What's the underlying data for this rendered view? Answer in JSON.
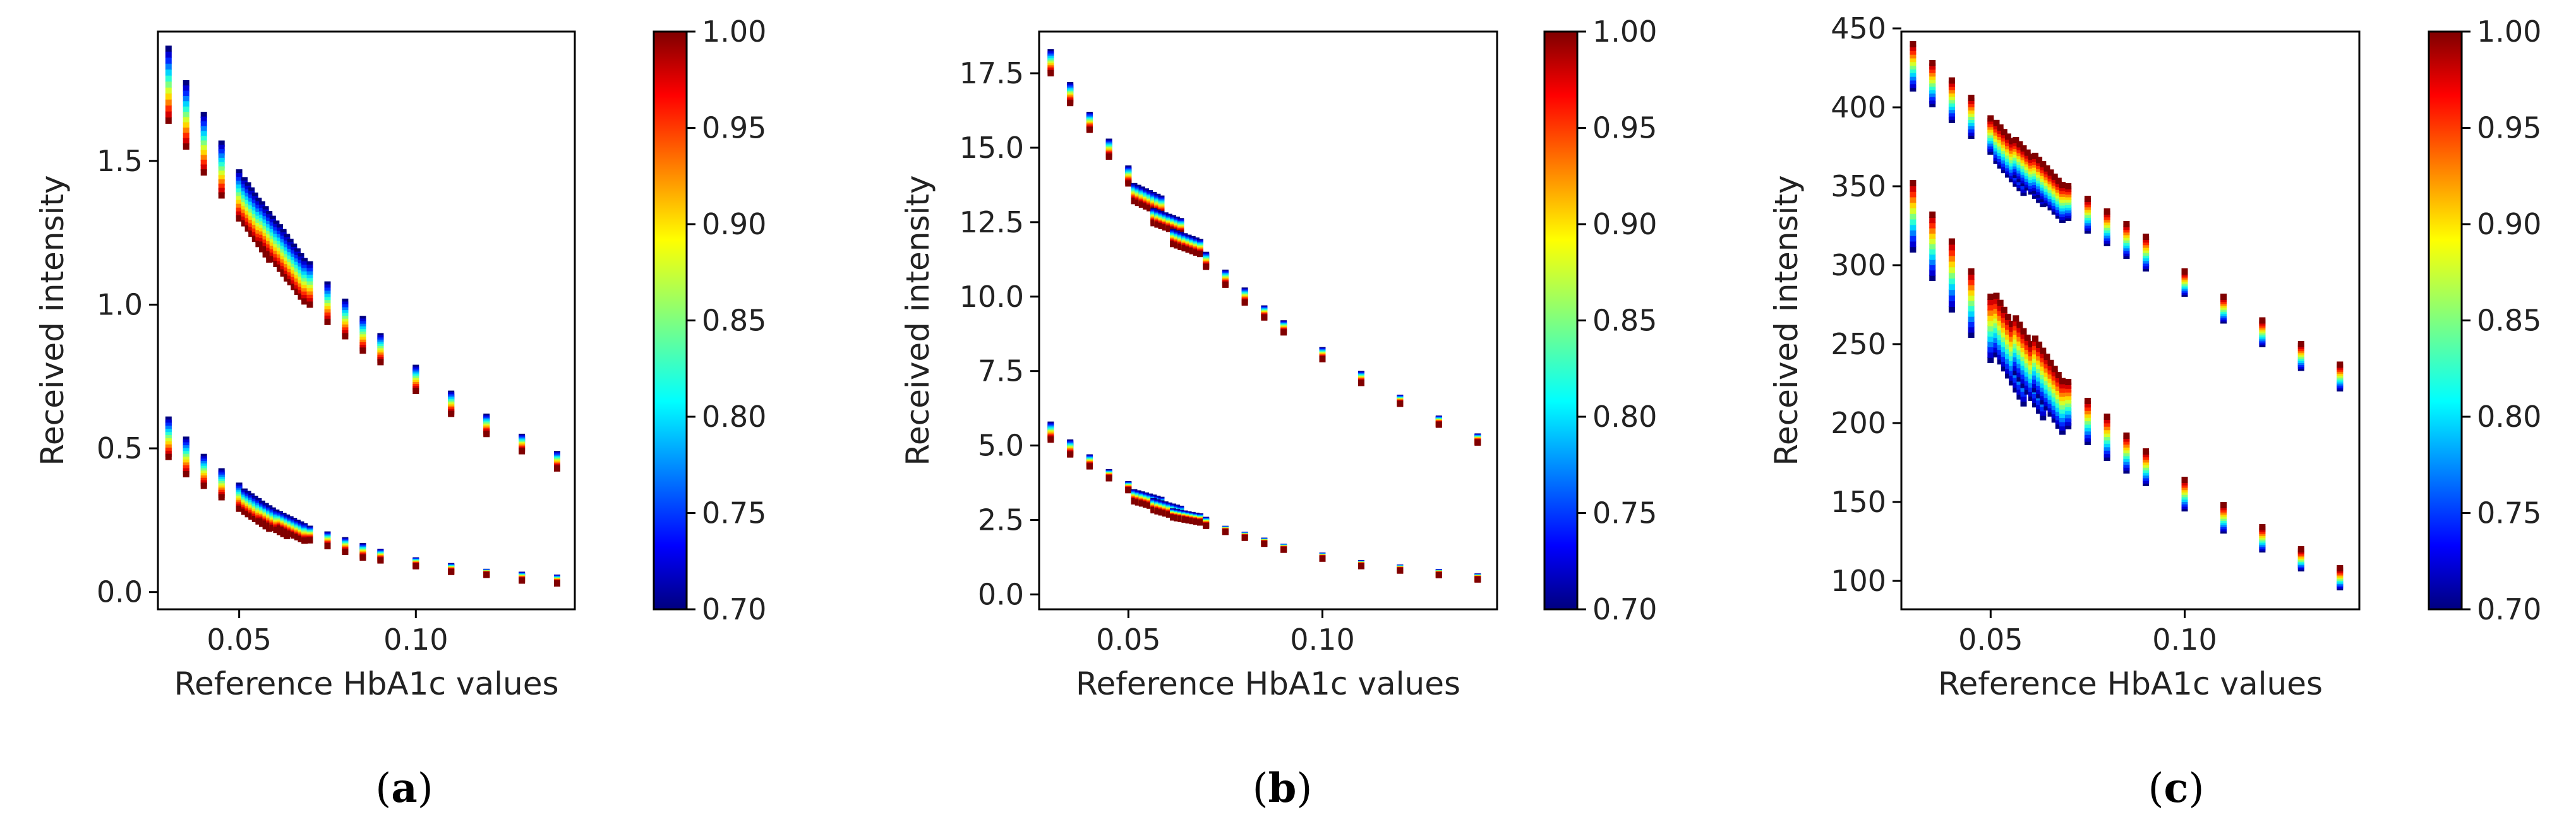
{
  "chart_data": [
    {
      "type": "scatter",
      "panel_label": "a",
      "xlabel": "Reference HbA1c values",
      "ylabel": "Received intensity",
      "xlim": [
        0.027,
        0.145
      ],
      "ylim": [
        -0.06,
        1.95
      ],
      "xticks": [
        0.05,
        0.1
      ],
      "xtick_labels": [
        "0.05",
        "0.10"
      ],
      "yticks": [
        0.0,
        0.5,
        1.0,
        1.5
      ],
      "ytick_labels": [
        "0.0",
        "0.5",
        "1.0",
        "1.5"
      ],
      "colorbar": {
        "range": [
          0.7,
          1.0
        ],
        "ticks": [
          "1.00",
          "0.95",
          "0.90",
          "0.85",
          "0.80",
          "0.75",
          "0.70"
        ],
        "colormap": "jet"
      },
      "series": [
        {
          "name": "upper",
          "x": [
            0.03,
            0.035,
            0.04,
            0.045,
            0.05,
            0.055,
            0.06,
            0.065,
            0.07,
            0.075,
            0.08,
            0.085,
            0.09,
            0.1,
            0.11,
            0.12,
            0.13,
            0.14
          ],
          "ymin": [
            1.64,
            1.55,
            1.46,
            1.38,
            1.3,
            1.22,
            1.15,
            1.07,
            1.0,
            0.94,
            0.89,
            0.84,
            0.8,
            0.7,
            0.62,
            0.55,
            0.49,
            0.43
          ],
          "ymax": [
            1.89,
            1.77,
            1.66,
            1.56,
            1.46,
            1.37,
            1.29,
            1.21,
            1.14,
            1.07,
            1.01,
            0.95,
            0.89,
            0.78,
            0.69,
            0.61,
            0.54,
            0.48
          ]
        },
        {
          "name": "lower",
          "x": [
            0.03,
            0.035,
            0.04,
            0.045,
            0.05,
            0.055,
            0.06,
            0.065,
            0.07,
            0.075,
            0.08,
            0.085,
            0.09,
            0.1,
            0.11,
            0.12,
            0.13,
            0.14
          ],
          "ymin": [
            0.47,
            0.41,
            0.37,
            0.33,
            0.29,
            0.25,
            0.22,
            0.2,
            0.18,
            0.16,
            0.14,
            0.12,
            0.11,
            0.09,
            0.07,
            0.06,
            0.04,
            0.03
          ],
          "ymax": [
            0.6,
            0.53,
            0.47,
            0.42,
            0.37,
            0.32,
            0.28,
            0.25,
            0.22,
            0.2,
            0.18,
            0.16,
            0.14,
            0.11,
            0.09,
            0.07,
            0.06,
            0.05
          ]
        }
      ]
    },
    {
      "type": "scatter",
      "panel_label": "b",
      "xlabel": "Reference HbA1c values",
      "ylabel": "Received intensity",
      "xlim": [
        0.027,
        0.145
      ],
      "ylim": [
        -0.5,
        18.9
      ],
      "xticks": [
        0.05,
        0.1
      ],
      "xtick_labels": [
        "0.05",
        "0.10"
      ],
      "yticks": [
        0.0,
        2.5,
        5.0,
        7.5,
        10.0,
        12.5,
        15.0,
        17.5
      ],
      "ytick_labels": [
        "0.0",
        "2.5",
        "5.0",
        "7.5",
        "10.0",
        "12.5",
        "15.0",
        "17.5"
      ],
      "colorbar": {
        "range": [
          0.7,
          1.0
        ],
        "ticks": [
          "1.00",
          "0.95",
          "0.90",
          "0.85",
          "0.80",
          "0.75",
          "0.70"
        ],
        "colormap": "jet"
      },
      "series": [
        {
          "name": "upper",
          "x": [
            0.03,
            0.035,
            0.04,
            0.045,
            0.05,
            0.055,
            0.06,
            0.065,
            0.07,
            0.075,
            0.08,
            0.085,
            0.09,
            0.1,
            0.11,
            0.12,
            0.13,
            0.14
          ],
          "ymin": [
            17.5,
            16.5,
            15.6,
            14.7,
            13.8,
            13.0,
            12.3,
            11.6,
            11.0,
            10.4,
            9.8,
            9.3,
            8.8,
            7.9,
            7.1,
            6.4,
            5.7,
            5.1
          ],
          "ymax": [
            18.2,
            17.1,
            16.1,
            15.2,
            14.3,
            13.5,
            12.7,
            12.0,
            11.4,
            10.8,
            10.2,
            9.6,
            9.1,
            8.2,
            7.4,
            6.6,
            5.9,
            5.3
          ]
        },
        {
          "name": "lower",
          "x": [
            0.03,
            0.035,
            0.04,
            0.045,
            0.05,
            0.055,
            0.06,
            0.065,
            0.07,
            0.075,
            0.08,
            0.085,
            0.09,
            0.1,
            0.11,
            0.12,
            0.13,
            0.14
          ],
          "ymin": [
            5.2,
            4.7,
            4.3,
            3.9,
            3.5,
            3.0,
            2.7,
            2.5,
            2.3,
            2.1,
            1.9,
            1.7,
            1.5,
            1.2,
            0.95,
            0.8,
            0.65,
            0.5
          ],
          "ymax": [
            5.7,
            5.1,
            4.6,
            4.1,
            3.7,
            3.3,
            3.0,
            2.7,
            2.5,
            2.2,
            2.0,
            1.8,
            1.6,
            1.3,
            1.05,
            0.9,
            0.75,
            0.6
          ]
        }
      ]
    },
    {
      "type": "scatter",
      "panel_label": "c",
      "xlabel": "Reference HbA1c values",
      "ylabel": "Received intensity",
      "xlim": [
        0.027,
        0.145
      ],
      "ylim": [
        82,
        448
      ],
      "xticks": [
        0.05,
        0.1
      ],
      "xtick_labels": [
        "0.05",
        "0.10"
      ],
      "yticks": [
        100,
        150,
        200,
        250,
        300,
        350,
        400,
        450
      ],
      "ytick_labels": [
        "100",
        "150",
        "200",
        "250",
        "300",
        "350",
        "400",
        "450"
      ],
      "colorbar": {
        "range": [
          0.7,
          1.0
        ],
        "ticks": [
          "1.00",
          "0.95",
          "0.90",
          "0.85",
          "0.80",
          "0.75",
          "0.70"
        ],
        "colormap": "jet"
      },
      "series": [
        {
          "name": "upper",
          "x": [
            0.03,
            0.035,
            0.04,
            0.045,
            0.05,
            0.055,
            0.06,
            0.065,
            0.07,
            0.075,
            0.08,
            0.085,
            0.09,
            0.1,
            0.11,
            0.12,
            0.13,
            0.14
          ],
          "ymin": [
            412,
            402,
            392,
            382,
            372,
            356,
            348,
            338,
            330,
            322,
            314,
            306,
            298,
            282,
            265,
            250,
            235,
            222
          ],
          "ymax": [
            440,
            428,
            417,
            406,
            393,
            380,
            370,
            360,
            350,
            342,
            334,
            326,
            318,
            296,
            280,
            265,
            250,
            237
          ]
        },
        {
          "name": "lower",
          "x": [
            0.03,
            0.035,
            0.04,
            0.045,
            0.05,
            0.055,
            0.06,
            0.065,
            0.07,
            0.075,
            0.08,
            0.085,
            0.09,
            0.1,
            0.11,
            0.12,
            0.13,
            0.14
          ],
          "ymin": [
            310,
            292,
            272,
            256,
            240,
            228,
            218,
            208,
            198,
            188,
            178,
            170,
            162,
            146,
            132,
            120,
            108,
            96
          ],
          "ymax": [
            352,
            332,
            315,
            296,
            280,
            265,
            252,
            240,
            226,
            214,
            204,
            192,
            182,
            164,
            148,
            134,
            120,
            108
          ]
        }
      ]
    }
  ]
}
